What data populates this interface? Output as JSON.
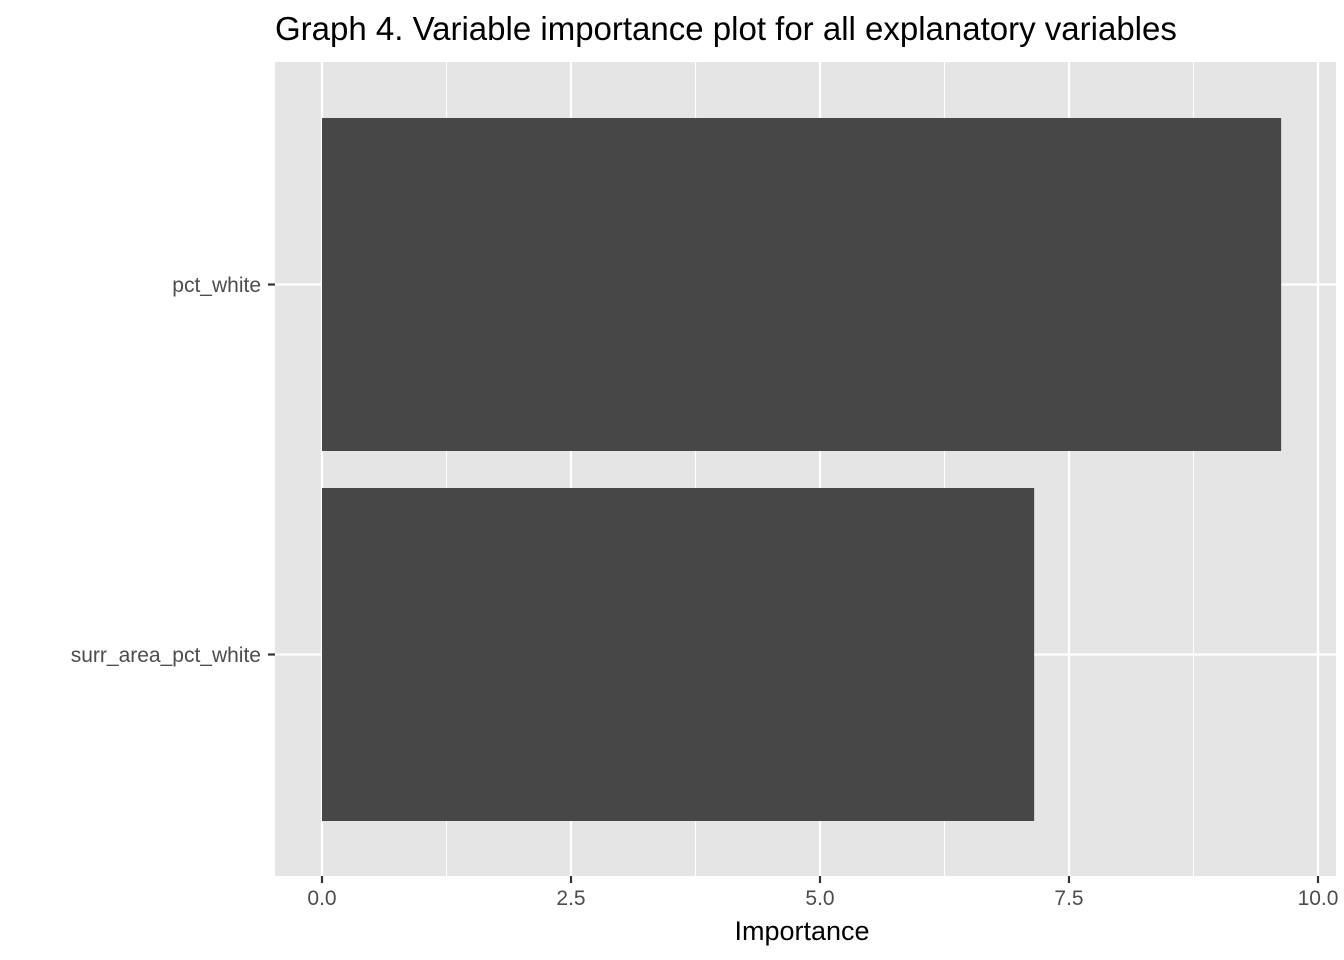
{
  "chart_data": {
    "type": "bar",
    "orientation": "horizontal",
    "title": "Graph 4. Variable importance plot for all explanatory variables",
    "xlabel": "Importance",
    "ylabel": "",
    "categories": [
      "pct_white",
      "surr_area_pct_white"
    ],
    "values": [
      9.63,
      7.15
    ],
    "xlim": [
      -0.48,
      10.0
    ],
    "x_ticks": [
      0.0,
      2.5,
      5.0,
      7.5,
      10.0
    ],
    "x_tick_labels": [
      "0.0",
      "2.5",
      "5.0",
      "7.5",
      "10.0"
    ],
    "grid": true,
    "legend": "none",
    "colors": {
      "bar": "#474747",
      "panel": "#e5e5e5",
      "grid": "#ffffff",
      "tick_text": "#4d4d4d",
      "tick_mark": "#333333"
    }
  }
}
